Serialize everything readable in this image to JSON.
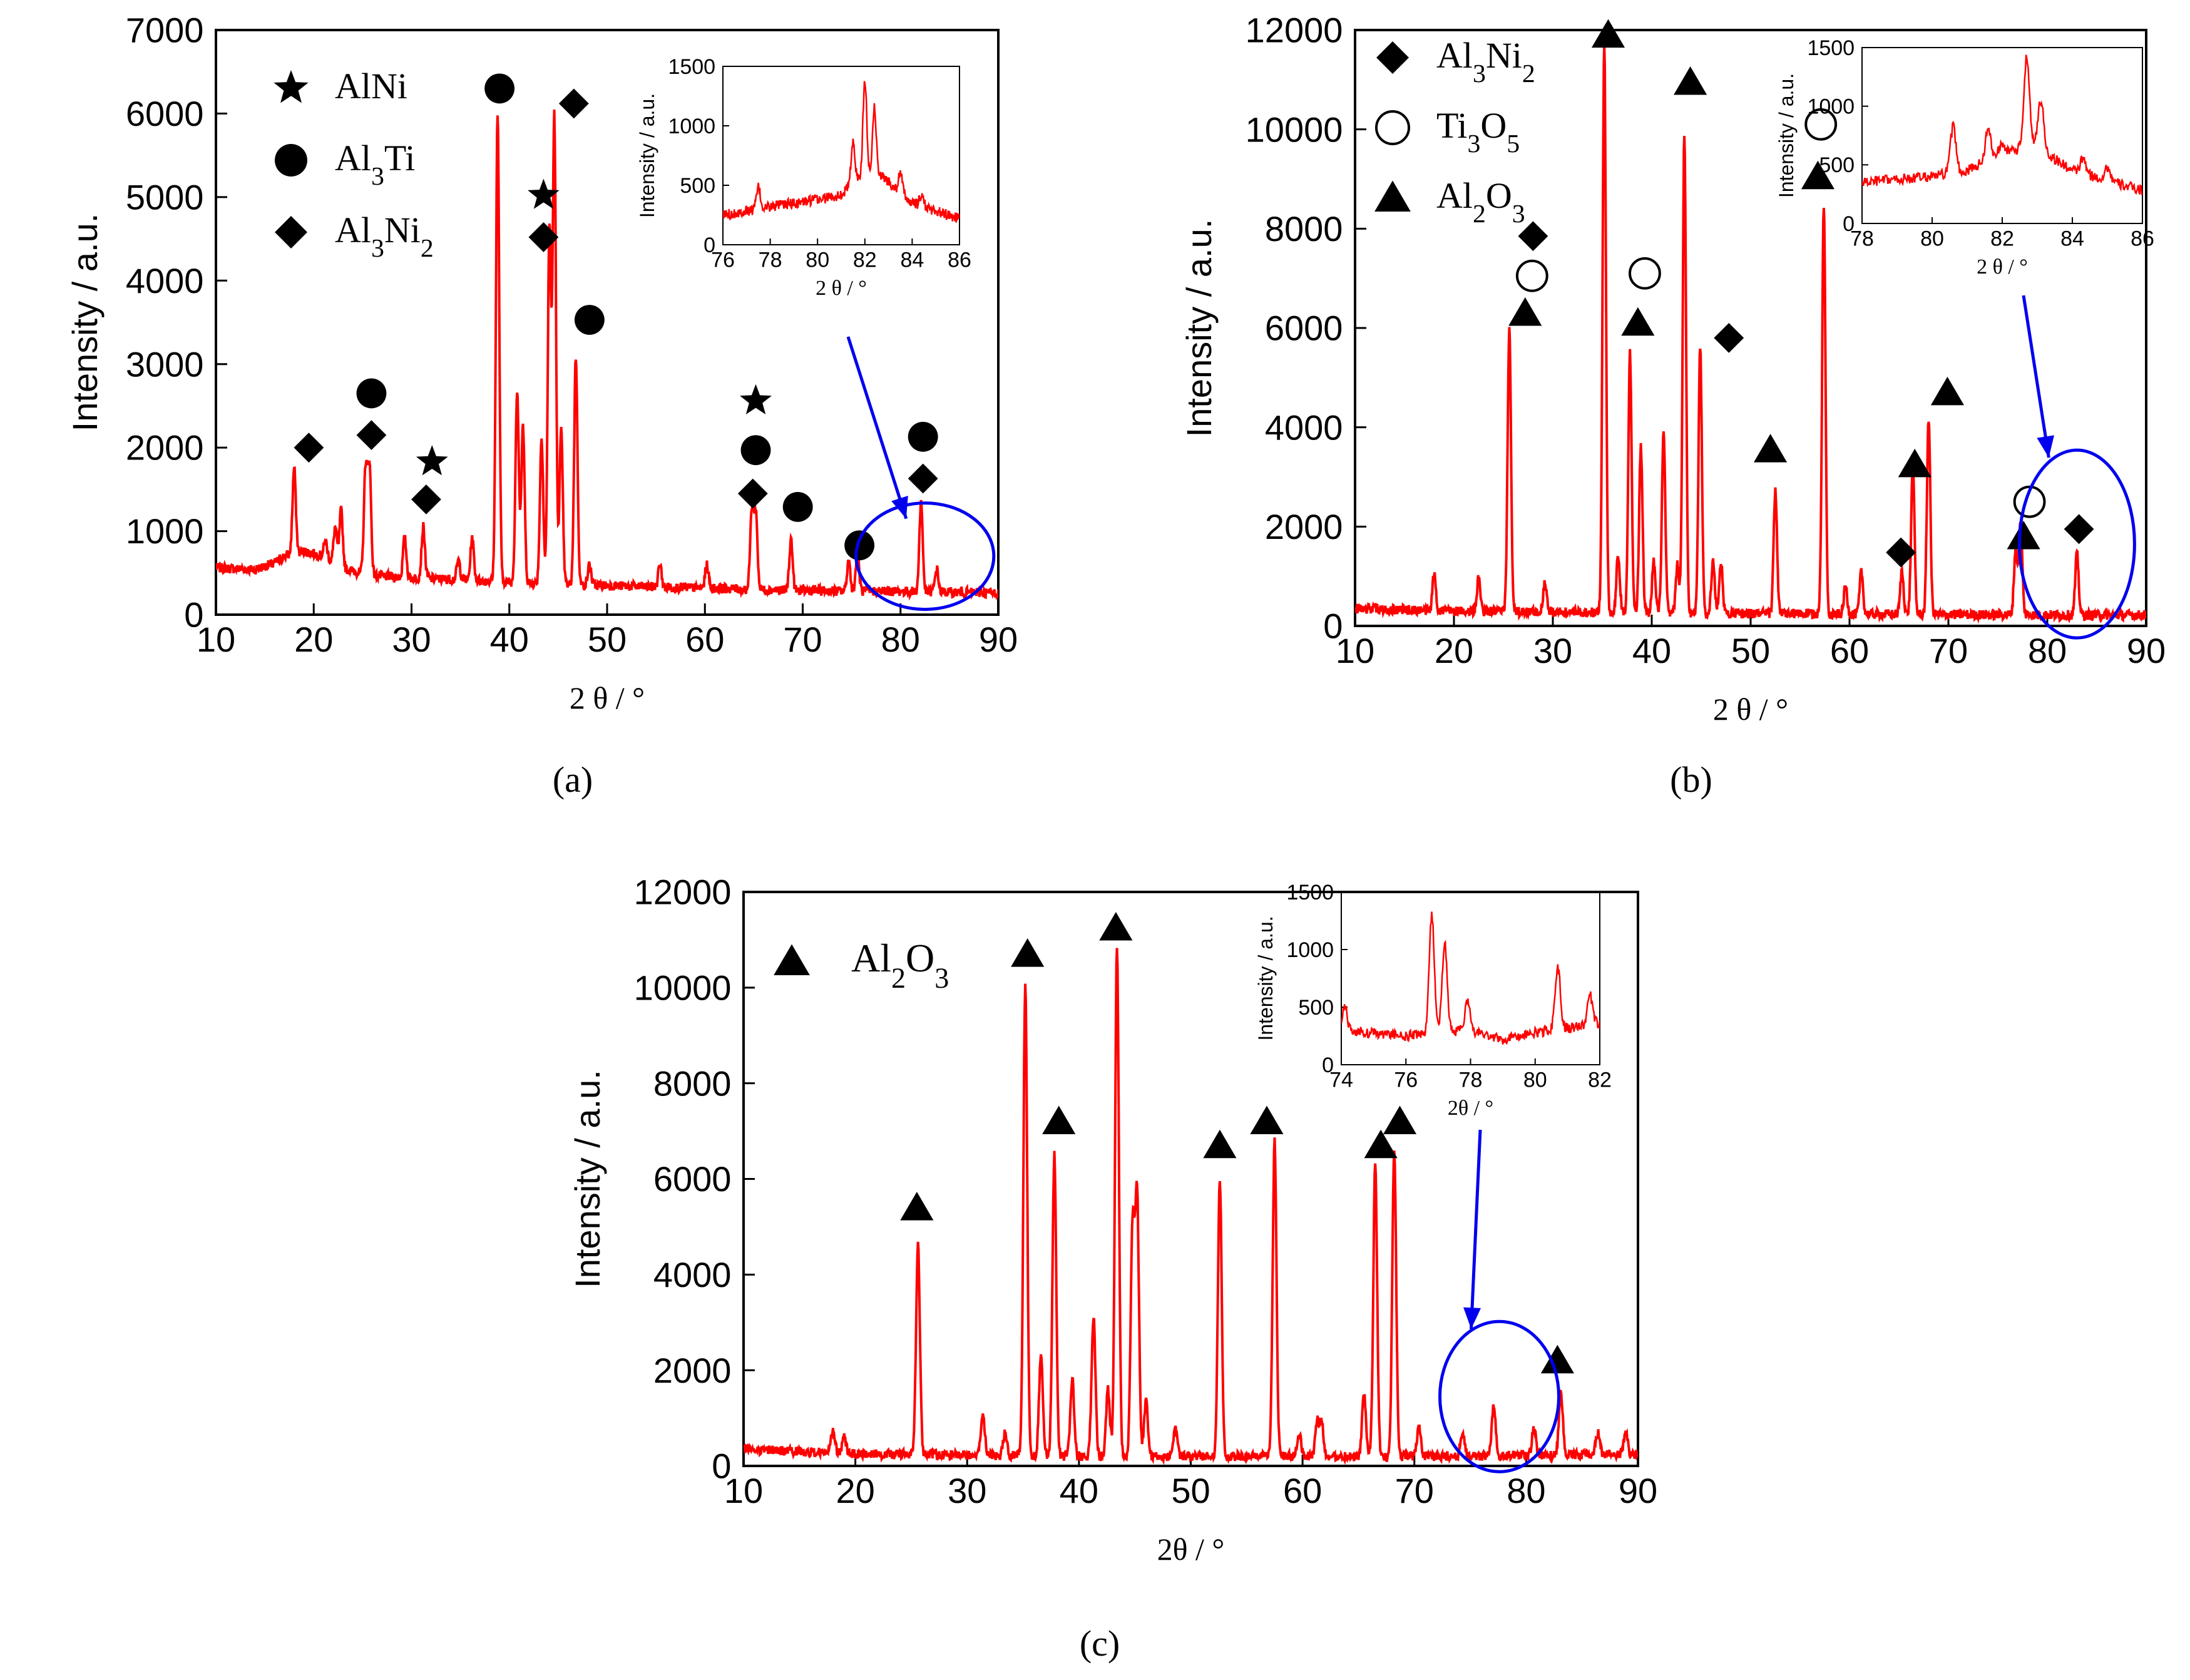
{
  "chart_data": [
    {
      "panel": "a",
      "type": "line",
      "title": "",
      "caption": "(a)",
      "xlabel": "2 θ / °",
      "ylabel": "Intensity / a.u.",
      "xlim": [
        10,
        90
      ],
      "ylim": [
        0,
        7000
      ],
      "xticks": [
        "10",
        "20",
        "30",
        "40",
        "50",
        "60",
        "70",
        "80",
        "90"
      ],
      "yticks": [
        "0",
        "1000",
        "2000",
        "3000",
        "4000",
        "5000",
        "6000",
        "7000"
      ],
      "series_color": "#ff0000",
      "baseline": [
        [
          10,
          560
        ],
        [
          14,
          540
        ],
        [
          16,
          620
        ],
        [
          17,
          700
        ],
        [
          19,
          760
        ],
        [
          21,
          700
        ],
        [
          23,
          550
        ],
        [
          26,
          470
        ],
        [
          30,
          440
        ],
        [
          35,
          420
        ],
        [
          40,
          390
        ],
        [
          45,
          360
        ],
        [
          50,
          350
        ],
        [
          55,
          330
        ],
        [
          60,
          320
        ],
        [
          65,
          300
        ],
        [
          70,
          290
        ],
        [
          75,
          280
        ],
        [
          80,
          280
        ],
        [
          85,
          270
        ],
        [
          90,
          260
        ]
      ],
      "peaks": [
        [
          18,
          1750
        ],
        [
          21.2,
          880
        ],
        [
          22.2,
          1050
        ],
        [
          22.8,
          1250
        ],
        [
          25.3,
          1750
        ],
        [
          25.7,
          1780
        ],
        [
          29.3,
          920
        ],
        [
          31.2,
          1050
        ],
        [
          34.8,
          650
        ],
        [
          36.2,
          920
        ],
        [
          38.8,
          6000
        ],
        [
          40.8,
          2700
        ],
        [
          41.4,
          2250
        ],
        [
          43.3,
          2120
        ],
        [
          44.1,
          4600
        ],
        [
          44.6,
          5950
        ],
        [
          45.3,
          2200
        ],
        [
          46.8,
          3100
        ],
        [
          48.2,
          600
        ],
        [
          55.4,
          600
        ],
        [
          60.2,
          600
        ],
        [
          64.8,
          1250
        ],
        [
          65.2,
          1220
        ],
        [
          68.8,
          900
        ],
        [
          74.7,
          650
        ],
        [
          75.6,
          750
        ],
        [
          82.1,
          1350
        ],
        [
          83.7,
          550
        ]
      ],
      "markers": [
        {
          "symbol": "diamond",
          "x": 19.5,
          "y": 2000
        },
        {
          "symbol": "circle",
          "x": 25.9,
          "y": 2650
        },
        {
          "symbol": "diamond",
          "x": 25.9,
          "y": 2150
        },
        {
          "symbol": "star",
          "x": 32.1,
          "y": 1830
        },
        {
          "symbol": "diamond",
          "x": 31.5,
          "y": 1380
        },
        {
          "symbol": "circle",
          "x": 39.0,
          "y": 6300
        },
        {
          "symbol": "star",
          "x": 43.5,
          "y": 5020
        },
        {
          "symbol": "diamond",
          "x": 43.5,
          "y": 4520
        },
        {
          "symbol": "diamond",
          "x": 46.6,
          "y": 6120
        },
        {
          "symbol": "circle",
          "x": 48.2,
          "y": 3530
        },
        {
          "symbol": "star",
          "x": 65.2,
          "y": 2560
        },
        {
          "symbol": "circle",
          "x": 65.2,
          "y": 1970
        },
        {
          "symbol": "diamond",
          "x": 64.9,
          "y": 1450
        },
        {
          "symbol": "circle",
          "x": 69.5,
          "y": 1290
        },
        {
          "symbol": "circle",
          "x": 75.8,
          "y": 830
        },
        {
          "symbol": "circle",
          "x": 82.3,
          "y": 2130
        },
        {
          "symbol": "diamond",
          "x": 82.3,
          "y": 1630
        }
      ],
      "legend": [
        {
          "symbol": "star",
          "base": "AlNi",
          "sub": ""
        },
        {
          "symbol": "circle",
          "base": "Al",
          "sub": "3",
          "tail": "Ti"
        },
        {
          "symbol": "diamond",
          "base": "Al",
          "sub": "3",
          "tail": "Ni",
          "sub2": "2"
        }
      ],
      "highlight_ellipse": {
        "cx": 82.5,
        "cy": 700
      },
      "inset": {
        "xlabel": "2 θ / °",
        "ylabel": "Intensity / a.u.",
        "xlim": [
          76,
          86
        ],
        "ylim": [
          0,
          1500
        ],
        "xticks": [
          "76",
          "78",
          "80",
          "82",
          "84",
          "86"
        ],
        "yticks": [
          "0",
          "500",
          "1000",
          "1500"
        ],
        "baseline": [
          [
            76,
            250
          ],
          [
            78,
            320
          ],
          [
            80,
            380
          ],
          [
            81,
            420
          ],
          [
            81.6,
            550
          ],
          [
            82.6,
            600
          ],
          [
            84,
            350
          ],
          [
            86,
            220
          ]
        ],
        "peaks": [
          [
            77.5,
            480
          ],
          [
            79.1,
            350
          ],
          [
            81.5,
            850
          ],
          [
            82.0,
            1380
          ],
          [
            82.4,
            1150
          ],
          [
            83.5,
            600
          ],
          [
            84.4,
            420
          ]
        ]
      }
    },
    {
      "panel": "b",
      "type": "line",
      "title": "",
      "caption": "(b)",
      "xlabel": "2 θ / °",
      "ylabel": "Intensity / a.u.",
      "xlim": [
        10,
        90
      ],
      "ylim": [
        0,
        12000
      ],
      "xticks": [
        "10",
        "20",
        "30",
        "40",
        "50",
        "60",
        "70",
        "80",
        "90"
      ],
      "yticks": [
        "0",
        "2000",
        "4000",
        "6000",
        "8000",
        "10000",
        "12000"
      ],
      "series_color": "#ff0000",
      "baseline": [
        [
          10,
          350
        ],
        [
          20,
          300
        ],
        [
          30,
          280
        ],
        [
          40,
          260
        ],
        [
          50,
          250
        ],
        [
          60,
          240
        ],
        [
          70,
          230
        ],
        [
          80,
          220
        ],
        [
          90,
          220
        ]
      ],
      "peaks": [
        [
          18,
          1050
        ],
        [
          22.5,
          950
        ],
        [
          25.6,
          6000
        ],
        [
          29.2,
          900
        ],
        [
          35.2,
          11700
        ],
        [
          36.6,
          1450
        ],
        [
          37.8,
          5500
        ],
        [
          38.9,
          3600
        ],
        [
          40.2,
          1300
        ],
        [
          41.2,
          3900
        ],
        [
          42.6,
          1250
        ],
        [
          43.3,
          9900
        ],
        [
          44.9,
          5650
        ],
        [
          46.2,
          1300
        ],
        [
          47,
          1300
        ],
        [
          52.5,
          2750
        ],
        [
          57.4,
          8500
        ],
        [
          59.6,
          800
        ],
        [
          61.2,
          1100
        ],
        [
          65.3,
          1100
        ],
        [
          66.4,
          3200
        ],
        [
          68,
          4200
        ],
        [
          76.8,
          1550
        ],
        [
          77.3,
          2050
        ],
        [
          83,
          1450
        ]
      ],
      "markers": [
        {
          "symbol": "triangle",
          "x": 27.2,
          "y": 6300
        },
        {
          "symbol": "circle-open",
          "x": 27.9,
          "y": 7050
        },
        {
          "symbol": "diamond",
          "x": 28.0,
          "y": 7850
        },
        {
          "symbol": "triangle",
          "x": 35.6,
          "y": 11900
        },
        {
          "symbol": "triangle",
          "x": 38.6,
          "y": 6100
        },
        {
          "symbol": "circle-open",
          "x": 39.3,
          "y": 7100
        },
        {
          "symbol": "triangle",
          "x": 43.9,
          "y": 10950
        },
        {
          "symbol": "diamond",
          "x": 47.8,
          "y": 5800
        },
        {
          "symbol": "triangle",
          "x": 52.0,
          "y": 3550
        },
        {
          "symbol": "triangle",
          "x": 56.8,
          "y": 9050
        },
        {
          "symbol": "circle-open",
          "x": 57.1,
          "y": 10100
        },
        {
          "symbol": "diamond",
          "x": 65.2,
          "y": 1480
        },
        {
          "symbol": "triangle",
          "x": 66.6,
          "y": 3250
        },
        {
          "symbol": "triangle",
          "x": 69.9,
          "y": 4700
        },
        {
          "symbol": "triangle",
          "x": 77.6,
          "y": 1800
        },
        {
          "symbol": "circle-open",
          "x": 78.2,
          "y": 2500
        },
        {
          "symbol": "diamond",
          "x": 83.2,
          "y": 1950
        }
      ],
      "legend": [
        {
          "symbol": "diamond",
          "base": "Al",
          "sub": "3",
          "tail": "Ni",
          "sub2": "2"
        },
        {
          "symbol": "circle-open",
          "base": "Ti",
          "sub": "3",
          "tail": "O",
          "sub2": "5"
        },
        {
          "symbol": "triangle",
          "base": "Al",
          "sub": "2",
          "tail": "O",
          "sub2": "3"
        }
      ],
      "highlight_ellipse": {
        "cx": 83.0,
        "cy": 1650
      },
      "inset": {
        "xlabel": "2 θ / °",
        "ylabel": "Intensity / a.u.",
        "xlim": [
          78,
          86
        ],
        "ylim": [
          0,
          1500
        ],
        "xticks": [
          "78",
          "80",
          "82",
          "84",
          "86"
        ],
        "yticks": [
          "0",
          "500",
          "1000",
          "1500"
        ],
        "baseline": [
          [
            78,
            350
          ],
          [
            80,
            400
          ],
          [
            81,
            450
          ],
          [
            82,
            600
          ],
          [
            83,
            650
          ],
          [
            84,
            450
          ],
          [
            86,
            280
          ]
        ],
        "peaks": [
          [
            80.6,
            820
          ],
          [
            81.6,
            800
          ],
          [
            82.0,
            700
          ],
          [
            82.7,
            1430
          ],
          [
            83.1,
            1050
          ],
          [
            84.3,
            550
          ],
          [
            85.0,
            480
          ]
        ]
      }
    },
    {
      "panel": "c",
      "type": "line",
      "title": "",
      "caption": "(c)",
      "xlabel": "2θ / °",
      "ylabel": "Intensity / a.u.",
      "xlim": [
        10,
        90
      ],
      "ylim": [
        0,
        12000
      ],
      "xticks": [
        "10",
        "20",
        "30",
        "40",
        "50",
        "60",
        "70",
        "80",
        "90"
      ],
      "yticks": [
        "0",
        "2000",
        "4000",
        "6000",
        "8000",
        "10000",
        "12000"
      ],
      "series_color": "#ff0000",
      "baseline": [
        [
          10,
          350
        ],
        [
          20,
          250
        ],
        [
          30,
          230
        ],
        [
          40,
          200
        ],
        [
          50,
          200
        ],
        [
          60,
          200
        ],
        [
          70,
          200
        ],
        [
          80,
          220
        ],
        [
          90,
          250
        ]
      ],
      "peaks": [
        [
          18,
          700
        ],
        [
          19,
          600
        ],
        [
          25.6,
          4700
        ],
        [
          31.4,
          1100
        ],
        [
          33.4,
          700
        ],
        [
          35.2,
          10050
        ],
        [
          36.6,
          2350
        ],
        [
          37.8,
          6500
        ],
        [
          39.4,
          1800
        ],
        [
          41.3,
          3100
        ],
        [
          42.6,
          1600
        ],
        [
          43.4,
          10900
        ],
        [
          44.8,
          5000
        ],
        [
          45.2,
          5600
        ],
        [
          46,
          1400
        ],
        [
          48.6,
          800
        ],
        [
          52.6,
          6050
        ],
        [
          57.5,
          6800
        ],
        [
          59.7,
          700
        ],
        [
          61.3,
          900
        ],
        [
          61.7,
          900
        ],
        [
          65.5,
          1500
        ],
        [
          66.5,
          6300
        ],
        [
          68.2,
          6650
        ],
        [
          70.4,
          800
        ],
        [
          74.3,
          700
        ],
        [
          77.1,
          1300
        ],
        [
          80.7,
          800
        ],
        [
          83.1,
          1600
        ],
        [
          86.4,
          700
        ],
        [
          88.9,
          700
        ]
      ],
      "markers": [
        {
          "symbol": "triangle",
          "x": 25.5,
          "y": 5400
        },
        {
          "symbol": "triangle",
          "x": 35.4,
          "y": 10700
        },
        {
          "symbol": "triangle",
          "x": 38.2,
          "y": 7200
        },
        {
          "symbol": "triangle",
          "x": 43.3,
          "y": 11250
        },
        {
          "symbol": "triangle",
          "x": 52.6,
          "y": 6700
        },
        {
          "symbol": "triangle",
          "x": 56.8,
          "y": 7200
        },
        {
          "symbol": "triangle",
          "x": 67.0,
          "y": 6700
        },
        {
          "symbol": "triangle",
          "x": 68.7,
          "y": 7200
        },
        {
          "symbol": "triangle",
          "x": 82.8,
          "y": 2200
        }
      ],
      "legend": [
        {
          "symbol": "triangle",
          "base": "Al",
          "sub": "2",
          "tail": "O",
          "sub2": "3"
        }
      ],
      "highlight_ellipse": {
        "cx": 77.6,
        "cy": 1450
      },
      "inset": {
        "xlabel": "2θ / °",
        "ylabel": "Intensity / a.u.",
        "xlim": [
          74,
          82
        ],
        "ylim": [
          0,
          1500
        ],
        "xticks": [
          "74",
          "76",
          "78",
          "80",
          "82"
        ],
        "yticks": [
          "0",
          "500",
          "1000",
          "1500"
        ],
        "baseline": [
          [
            74,
            300
          ],
          [
            76,
            250
          ],
          [
            78,
            300
          ],
          [
            79,
            220
          ],
          [
            80,
            280
          ],
          [
            82,
            360
          ]
        ],
        "peaks": [
          [
            74.1,
            500
          ],
          [
            76.8,
            1300
          ],
          [
            77.2,
            1050
          ],
          [
            77.9,
            550
          ],
          [
            80.7,
            850
          ],
          [
            81.7,
            600
          ]
        ]
      }
    }
  ]
}
